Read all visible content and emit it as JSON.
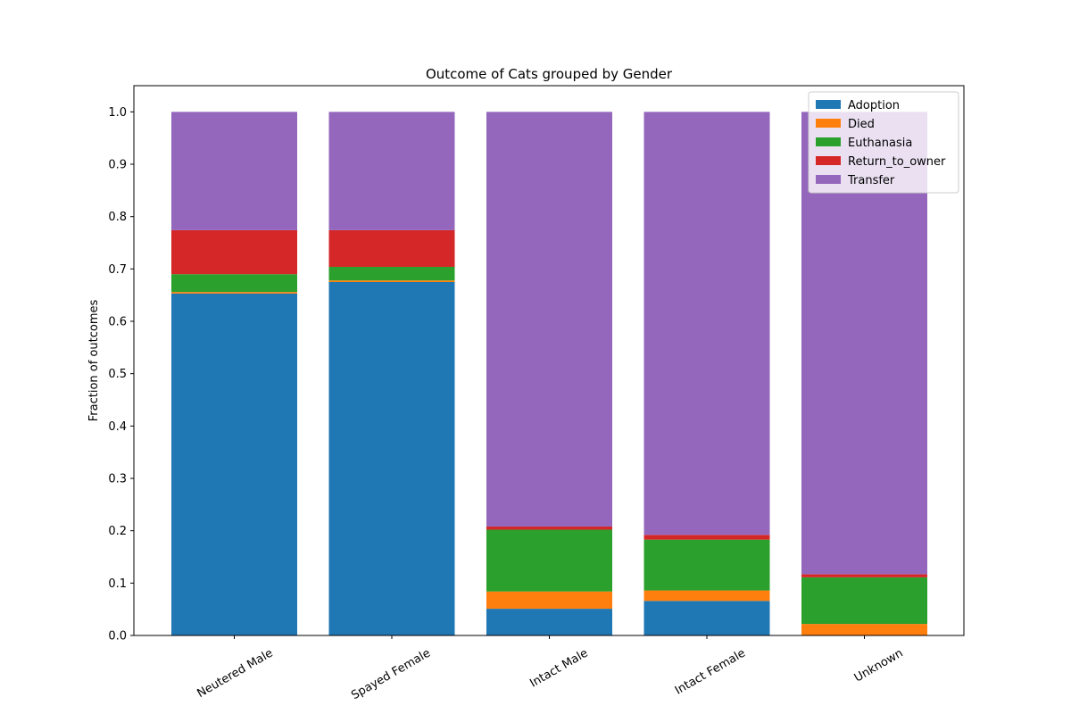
{
  "chart_data": {
    "type": "bar",
    "stacked": true,
    "title": "Outcome of Cats grouped by Gender",
    "xlabel": "",
    "ylabel": "Fraction of outcomes",
    "ylim": [
      0,
      1.05
    ],
    "yticks": [
      "0.0",
      "0.1",
      "0.2",
      "0.3",
      "0.4",
      "0.5",
      "0.6",
      "0.7",
      "0.8",
      "0.9",
      "1.0"
    ],
    "categories": [
      "Neutered Male",
      "Spayed Female",
      "Intact Male",
      "Intact Female",
      "Unknown"
    ],
    "series": [
      {
        "name": "Adoption",
        "color": "#1f77b4",
        "values": [
          0.653,
          0.675,
          0.051,
          0.066,
          0.0
        ]
      },
      {
        "name": "Died",
        "color": "#ff7f0e",
        "values": [
          0.003,
          0.003,
          0.033,
          0.02,
          0.022
        ]
      },
      {
        "name": "Euthanasia",
        "color": "#2ca02c",
        "values": [
          0.034,
          0.026,
          0.118,
          0.097,
          0.089
        ]
      },
      {
        "name": "Return_to_owner",
        "color": "#d62728",
        "values": [
          0.084,
          0.07,
          0.006,
          0.009,
          0.006
        ]
      },
      {
        "name": "Transfer",
        "color": "#9467bd",
        "values": [
          0.226,
          0.226,
          0.792,
          0.808,
          0.883
        ]
      }
    ],
    "grid": false,
    "legend_position": "top-right"
  }
}
